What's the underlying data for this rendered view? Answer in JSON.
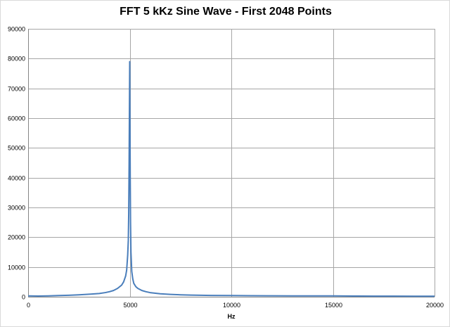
{
  "chart_data": {
    "type": "line",
    "title": "FFT 5 kKz Sine Wave - First 2048 Points",
    "xlabel": "Hz",
    "ylabel": "",
    "xlim": [
      0,
      20000
    ],
    "ylim": [
      0,
      90000
    ],
    "x_ticks": [
      0,
      5000,
      10000,
      15000,
      20000
    ],
    "y_ticks": [
      0,
      10000,
      20000,
      30000,
      40000,
      50000,
      60000,
      70000,
      80000,
      90000
    ],
    "x_tick_labels": [
      "0",
      "5000",
      "10000",
      "15000",
      "20000"
    ],
    "y_tick_labels": [
      "0",
      "10000",
      "20000",
      "30000",
      "40000",
      "50000",
      "60000",
      "70000",
      "80000",
      "90000"
    ],
    "grid": {
      "horizontal": true,
      "vertical": true
    },
    "legend": "none",
    "series_color": "#4a7ebb",
    "grid_color": "#a6a6a6",
    "series": [
      {
        "x": [
          0,
          500,
          1000,
          1500,
          2000,
          2500,
          3000,
          3500,
          3800,
          4000,
          4200,
          4400,
          4600,
          4700,
          4800,
          4850,
          4900,
          4930,
          4950,
          4970,
          4985,
          5000,
          5010,
          5025,
          5040,
          5060,
          5100,
          5150,
          5200,
          5300,
          5400,
          5600,
          5800,
          6000,
          6500,
          7000,
          7500,
          8000,
          9000,
          10000,
          11000,
          12000,
          13000,
          14000,
          15000,
          16000,
          17000,
          18000,
          19000,
          20000
        ],
        "values": [
          300,
          250,
          300,
          400,
          500,
          650,
          850,
          1100,
          1400,
          1700,
          2100,
          2800,
          3900,
          5000,
          7000,
          9000,
          14000,
          19000,
          28000,
          45000,
          62000,
          79000,
          62000,
          40000,
          25000,
          15000,
          8500,
          6000,
          4500,
          3400,
          2800,
          2100,
          1700,
          1400,
          1000,
          800,
          650,
          550,
          450,
          400,
          350,
          320,
          300,
          280,
          300,
          250,
          220,
          200,
          180,
          170
        ]
      }
    ]
  }
}
